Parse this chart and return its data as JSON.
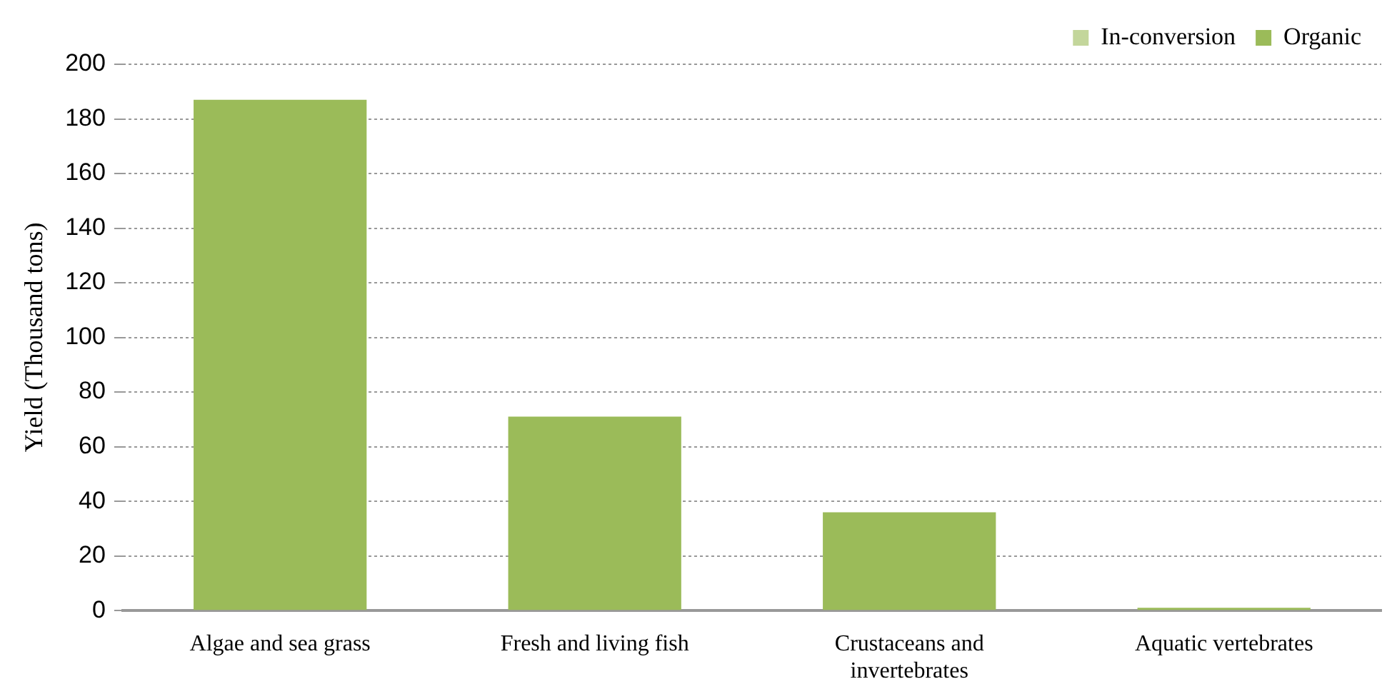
{
  "chart_data": {
    "type": "bar",
    "ylabel": "Yield (Thousand tons)",
    "categories": [
      "Algae and sea grass",
      "Fresh and living fish",
      "Crustaceans and invertebrates",
      "Aquatic vertebrates"
    ],
    "series": [
      {
        "name": "In-conversion",
        "color": "#c3d69b",
        "values": [
          0,
          0,
          0,
          0
        ]
      },
      {
        "name": "Organic",
        "color": "#9bbb59",
        "values": [
          187,
          71,
          36,
          1
        ]
      }
    ],
    "stacked": true,
    "ylim": [
      0,
      200
    ],
    "yticks": [
      0,
      20,
      40,
      60,
      80,
      100,
      120,
      140,
      160,
      180,
      200
    ],
    "grid": "y",
    "legend": "top right"
  }
}
